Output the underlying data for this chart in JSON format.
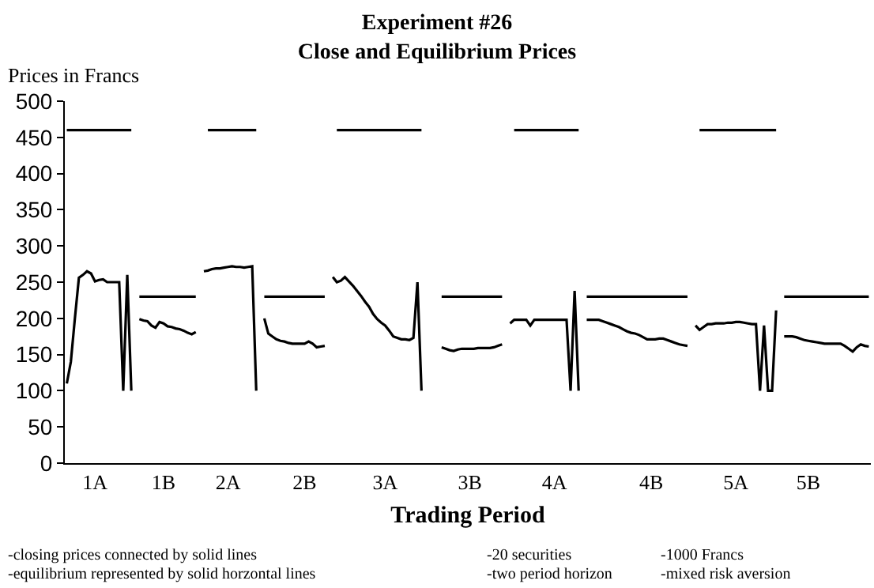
{
  "chart_data": {
    "type": "line",
    "title": "Experiment #26\nClose and Equilibrium Prices",
    "xlabel": "Trading Period",
    "ylabel": "Prices in Francs",
    "categories": [
      null,
      null,
      null,
      null,
      null,
      null,
      null,
      "1A",
      null,
      null,
      null,
      null,
      null,
      null,
      null,
      null,
      null,
      null,
      null,
      null,
      null,
      null,
      null,
      null,
      "1B",
      null,
      null,
      null,
      null,
      null,
      null,
      null,
      null,
      null,
      null,
      null,
      null,
      null,
      null,
      null,
      "2A",
      null,
      null,
      null,
      null,
      null,
      null,
      null,
      null,
      null,
      null,
      null,
      null,
      null,
      null,
      null,
      null,
      null,
      null,
      "2B",
      null,
      null,
      null,
      null,
      null,
      null,
      null,
      null,
      null,
      null,
      null,
      null,
      null,
      null,
      null,
      null,
      null,
      null,
      null,
      "3A",
      null,
      null,
      null,
      null,
      null,
      null,
      null,
      null,
      null,
      null,
      null,
      null,
      null,
      null,
      null,
      null,
      null,
      null,
      null,
      null,
      "3B",
      null,
      null,
      null,
      null,
      null,
      null,
      null,
      null,
      null,
      null,
      null,
      null,
      null,
      null,
      null,
      null,
      null,
      null,
      null,
      null,
      "4A",
      null,
      null,
      null,
      null,
      null,
      null,
      null,
      null,
      null,
      null,
      null,
      null,
      null,
      null,
      null,
      null,
      null,
      null,
      null,
      null,
      null,
      null,
      null,
      "4B",
      null,
      null,
      null,
      null,
      null,
      null,
      null,
      null,
      null,
      null,
      null,
      null,
      null,
      null,
      null,
      null,
      null,
      null,
      null,
      null,
      "5A",
      null,
      null,
      null,
      null,
      null,
      null,
      null,
      null,
      null,
      null,
      null,
      null,
      null,
      null,
      null,
      null,
      null,
      "5B",
      null,
      null,
      null,
      null,
      null,
      null,
      null,
      null,
      null,
      null,
      null,
      null,
      null,
      null,
      null
    ],
    "ylim": [
      0,
      500
    ],
    "yticks": [
      0,
      50,
      100,
      150,
      200,
      250,
      300,
      350,
      400,
      450,
      500
    ],
    "marker": "none",
    "line_style": "solid",
    "series": [
      {
        "color": "#000000",
        "values": [
          460,
          460,
          460,
          460,
          460,
          460,
          460,
          460,
          460,
          460,
          460,
          460,
          460,
          460,
          460,
          460,
          460,
          null,
          230,
          230,
          230,
          230,
          230,
          230,
          230,
          230,
          230,
          230,
          230,
          230,
          230,
          230,
          230,
          null,
          null,
          460,
          460,
          460,
          460,
          460,
          460,
          460,
          460,
          460,
          460,
          460,
          460,
          460,
          null,
          230,
          230,
          230,
          230,
          230,
          230,
          230,
          230,
          230,
          230,
          230,
          230,
          230,
          230,
          230,
          230,
          null,
          null,
          460,
          460,
          460,
          460,
          460,
          460,
          460,
          460,
          460,
          460,
          460,
          460,
          460,
          460,
          460,
          460,
          460,
          460,
          460,
          460,
          460,
          460,
          null,
          null,
          null,
          null,
          230,
          230,
          230,
          230,
          230,
          230,
          230,
          230,
          230,
          230,
          230,
          230,
          230,
          230,
          230,
          230,
          null,
          null,
          460,
          460,
          460,
          460,
          460,
          460,
          460,
          460,
          460,
          460,
          460,
          460,
          460,
          460,
          460,
          460,
          460,
          null,
          230,
          230,
          230,
          230,
          230,
          230,
          230,
          230,
          230,
          230,
          230,
          230,
          230,
          230,
          230,
          230,
          230,
          230,
          230,
          230,
          230,
          230,
          230,
          230,
          230,
          230,
          null,
          null,
          460,
          460,
          460,
          460,
          460,
          460,
          460,
          460,
          460,
          460,
          460,
          460,
          460,
          460,
          460,
          460,
          460,
          460,
          460,
          460,
          null,
          230,
          230,
          230,
          230,
          230,
          230,
          230,
          230,
          230,
          230,
          230,
          230,
          230,
          230,
          230,
          230,
          230,
          230,
          230,
          230,
          230,
          230
        ]
      },
      {
        "color": "#000000",
        "values": [
          110,
          140,
          200,
          256,
          260,
          265,
          262,
          251,
          253,
          254,
          250,
          250,
          250,
          250,
          100,
          260,
          100,
          null,
          199,
          197,
          196,
          190,
          187,
          195,
          193,
          189,
          188,
          186,
          185,
          183,
          180,
          178,
          181,
          null,
          265,
          266,
          268,
          269,
          269,
          270,
          271,
          272,
          271,
          271,
          270,
          271,
          272,
          100,
          null,
          200,
          179,
          175,
          171,
          169,
          168,
          166,
          165,
          165,
          165,
          165,
          168,
          165,
          160,
          161,
          162,
          null,
          257,
          250,
          252,
          257,
          251,
          245,
          238,
          231,
          223,
          216,
          206,
          199,
          194,
          190,
          183,
          175,
          173,
          171,
          171,
          170,
          173,
          250,
          100,
          null,
          null,
          null,
          null,
          160,
          158,
          156,
          155,
          157,
          158,
          158,
          158,
          158,
          159,
          159,
          159,
          159,
          160,
          162,
          164,
          null,
          193,
          198,
          198,
          198,
          198,
          190,
          198,
          198,
          198,
          198,
          198,
          198,
          198,
          198,
          198,
          100,
          238,
          100,
          null,
          198,
          198,
          198,
          198,
          196,
          194,
          192,
          190,
          188,
          185,
          182,
          180,
          179,
          177,
          174,
          171,
          171,
          171,
          172,
          172,
          170,
          168,
          166,
          164,
          163,
          162,
          null,
          190,
          184,
          188,
          192,
          192,
          193,
          193,
          193,
          194,
          194,
          195,
          195,
          194,
          193,
          192,
          192,
          100,
          190,
          100,
          100,
          211,
          null,
          175,
          175,
          175,
          174,
          172,
          170,
          169,
          168,
          167,
          166,
          165,
          165,
          165,
          165,
          165,
          162,
          158,
          154,
          160,
          164,
          162,
          161
        ]
      }
    ],
    "annotations": [
      "-closing prices connected by solid lines",
      "-equilibrium represented by solid horzontal lines",
      "-20 securities",
      "-1000 Francs",
      "-two period horizon",
      "-mixed risk aversion"
    ]
  }
}
